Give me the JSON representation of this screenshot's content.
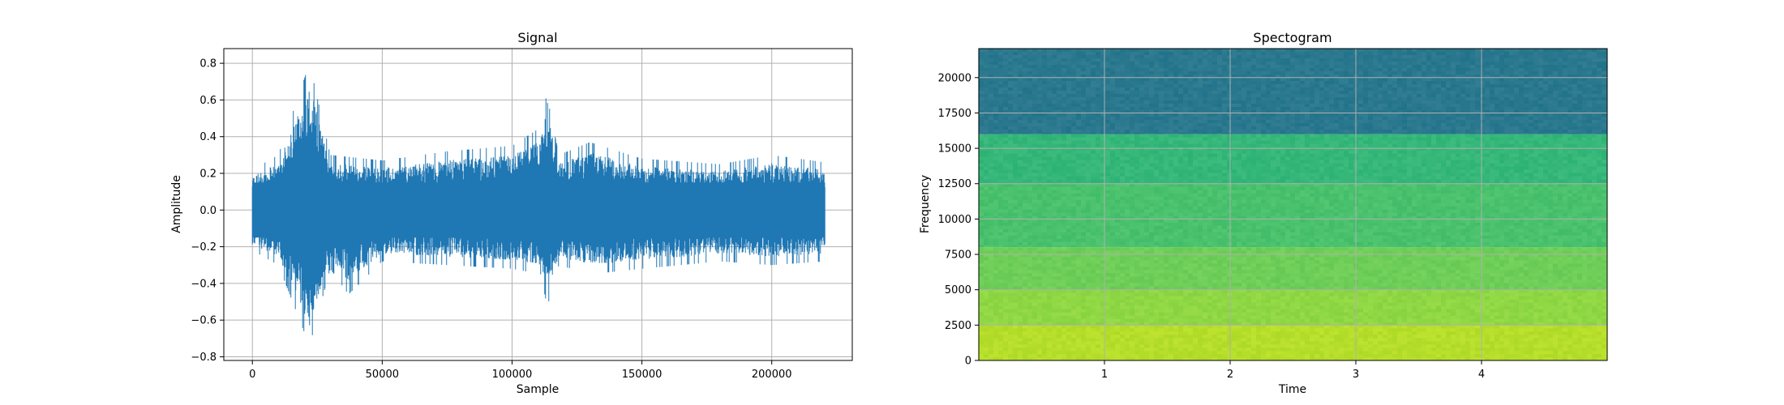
{
  "chart_data": [
    {
      "type": "line",
      "title": "Signal",
      "xlabel": "Sample",
      "ylabel": "Amplitude",
      "xlim": [
        -11000,
        231000
      ],
      "ylim": [
        -0.82,
        0.88
      ],
      "x_ticks": [
        0,
        50000,
        100000,
        150000,
        200000
      ],
      "x_tick_labels": [
        "0",
        "50000",
        "100000",
        "150000",
        "200000"
      ],
      "y_ticks": [
        -0.8,
        -0.6,
        -0.4,
        -0.2,
        0.0,
        0.2,
        0.4,
        0.6,
        0.8
      ],
      "y_tick_labels": [
        "−0.8",
        "−0.6",
        "−0.4",
        "−0.2",
        "0.0",
        "0.2",
        "0.4",
        "0.6",
        "0.8"
      ],
      "grid": true,
      "series_color": "#1f77b4",
      "x_range": [
        0,
        220500
      ],
      "envelope": {
        "x": [
          0,
          10000,
          22000,
          30000,
          37000,
          50000,
          75000,
          100000,
          111000,
          113000,
          114500,
          118000,
          130000,
          150000,
          180000,
          200000,
          220500
        ],
        "upper": [
          0.22,
          0.3,
          0.8,
          0.3,
          0.29,
          0.27,
          0.32,
          0.35,
          0.45,
          0.61,
          0.55,
          0.3,
          0.37,
          0.28,
          0.25,
          0.3,
          0.26
        ],
        "lower": [
          -0.22,
          -0.3,
          -0.74,
          -0.32,
          -0.46,
          -0.28,
          -0.3,
          -0.32,
          -0.35,
          -0.49,
          -0.5,
          -0.3,
          -0.35,
          -0.32,
          -0.28,
          -0.3,
          -0.28
        ]
      }
    },
    {
      "type": "heatmap",
      "title": "Spectogram",
      "xlabel": "Time",
      "ylabel": "Frequency",
      "xlim": [
        0,
        5.0
      ],
      "ylim": [
        0,
        22050
      ],
      "x_ticks": [
        1,
        2,
        3,
        4
      ],
      "x_tick_labels": [
        "1",
        "2",
        "3",
        "4"
      ],
      "y_ticks": [
        0,
        2500,
        5000,
        7500,
        10000,
        12500,
        15000,
        17500,
        20000
      ],
      "y_tick_labels": [
        "0",
        "2500",
        "5000",
        "7500",
        "10000",
        "12500",
        "15000",
        "17500",
        "20000"
      ],
      "grid": true,
      "colormap": "viridis",
      "frequency_bands": [
        {
          "from": 0,
          "to": 2500,
          "color": "#b5de2b"
        },
        {
          "from": 2500,
          "to": 5000,
          "color": "#8fd744"
        },
        {
          "from": 5000,
          "to": 8000,
          "color": "#6ece58"
        },
        {
          "from": 8000,
          "to": 12500,
          "color": "#4ac16d"
        },
        {
          "from": 12500,
          "to": 16000,
          "color": "#35b779"
        },
        {
          "from": 16000,
          "to": 22050,
          "color": "#2a788e"
        }
      ]
    }
  ]
}
